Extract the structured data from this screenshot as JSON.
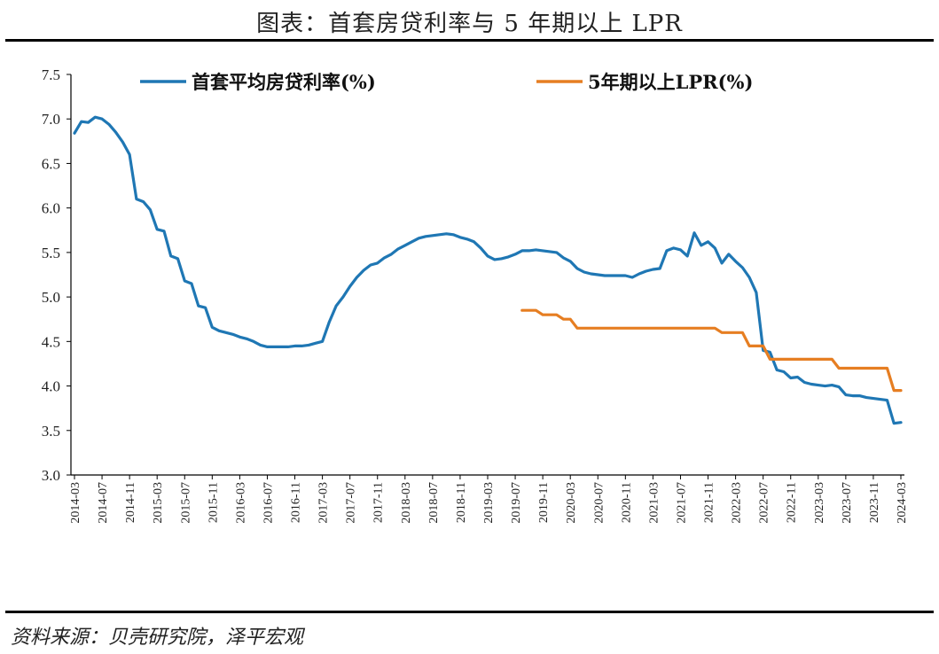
{
  "title": "图表：首套房贷利率与 5 年期以上 LPR",
  "source": "资料来源：贝壳研究院，泽平宏观",
  "chart_data": {
    "type": "line",
    "title": "首套房贷利率与 5 年期以上 LPR",
    "xlabel": "",
    "ylabel": "",
    "ylim": [
      3.0,
      7.5
    ],
    "yticks": [
      3.0,
      3.5,
      4.0,
      4.5,
      5.0,
      5.5,
      6.0,
      6.5,
      7.0,
      7.5
    ],
    "x_start": "2014-03",
    "x_end": "2024-03",
    "x_tick_labels": [
      "2014-03",
      "2014-07",
      "2014-11",
      "2015-03",
      "2015-07",
      "2015-11",
      "2016-03",
      "2016-07",
      "2016-11",
      "2017-03",
      "2017-07",
      "2017-11",
      "2018-03",
      "2018-07",
      "2018-11",
      "2019-03",
      "2019-07",
      "2019-11",
      "2020-03",
      "2020-07",
      "2020-11",
      "2021-03",
      "2021-07",
      "2021-11",
      "2022-03",
      "2022-07",
      "2022-11",
      "2023-03",
      "2023-07",
      "2023-11",
      "2024-03"
    ],
    "legend_position": "top",
    "series": [
      {
        "name": "首套平均房贷利率(%)",
        "color": "#1F77B4",
        "points": [
          [
            "2014-03",
            6.84
          ],
          [
            "2014-04",
            6.97
          ],
          [
            "2014-05",
            6.96
          ],
          [
            "2014-06",
            7.02
          ],
          [
            "2014-07",
            7.0
          ],
          [
            "2014-08",
            6.94
          ],
          [
            "2014-09",
            6.85
          ],
          [
            "2014-10",
            6.74
          ],
          [
            "2014-11",
            6.6
          ],
          [
            "2014-12",
            6.1
          ],
          [
            "2015-01",
            6.07
          ],
          [
            "2015-02",
            5.98
          ],
          [
            "2015-03",
            5.76
          ],
          [
            "2015-04",
            5.74
          ],
          [
            "2015-05",
            5.46
          ],
          [
            "2015-06",
            5.43
          ],
          [
            "2015-07",
            5.18
          ],
          [
            "2015-08",
            5.15
          ],
          [
            "2015-09",
            4.9
          ],
          [
            "2015-10",
            4.88
          ],
          [
            "2015-11",
            4.66
          ],
          [
            "2015-12",
            4.62
          ],
          [
            "2016-01",
            4.6
          ],
          [
            "2016-02",
            4.58
          ],
          [
            "2016-03",
            4.55
          ],
          [
            "2016-04",
            4.53
          ],
          [
            "2016-05",
            4.5
          ],
          [
            "2016-06",
            4.46
          ],
          [
            "2016-07",
            4.44
          ],
          [
            "2016-08",
            4.44
          ],
          [
            "2016-09",
            4.44
          ],
          [
            "2016-10",
            4.44
          ],
          [
            "2016-11",
            4.45
          ],
          [
            "2016-12",
            4.45
          ],
          [
            "2017-01",
            4.46
          ],
          [
            "2017-02",
            4.48
          ],
          [
            "2017-03",
            4.5
          ],
          [
            "2017-04",
            4.72
          ],
          [
            "2017-05",
            4.9
          ],
          [
            "2017-06",
            5.0
          ],
          [
            "2017-07",
            5.12
          ],
          [
            "2017-08",
            5.22
          ],
          [
            "2017-09",
            5.3
          ],
          [
            "2017-10",
            5.36
          ],
          [
            "2017-11",
            5.38
          ],
          [
            "2017-12",
            5.44
          ],
          [
            "2018-01",
            5.48
          ],
          [
            "2018-02",
            5.54
          ],
          [
            "2018-03",
            5.58
          ],
          [
            "2018-04",
            5.62
          ],
          [
            "2018-05",
            5.66
          ],
          [
            "2018-06",
            5.68
          ],
          [
            "2018-07",
            5.69
          ],
          [
            "2018-08",
            5.7
          ],
          [
            "2018-09",
            5.71
          ],
          [
            "2018-10",
            5.7
          ],
          [
            "2018-11",
            5.67
          ],
          [
            "2018-12",
            5.65
          ],
          [
            "2019-01",
            5.62
          ],
          [
            "2019-02",
            5.55
          ],
          [
            "2019-03",
            5.46
          ],
          [
            "2019-04",
            5.42
          ],
          [
            "2019-05",
            5.43
          ],
          [
            "2019-06",
            5.45
          ],
          [
            "2019-07",
            5.48
          ],
          [
            "2019-08",
            5.52
          ],
          [
            "2019-09",
            5.52
          ],
          [
            "2019-10",
            5.53
          ],
          [
            "2019-11",
            5.52
          ],
          [
            "2019-12",
            5.51
          ],
          [
            "2020-01",
            5.5
          ],
          [
            "2020-02",
            5.44
          ],
          [
            "2020-03",
            5.4
          ],
          [
            "2020-04",
            5.32
          ],
          [
            "2020-05",
            5.28
          ],
          [
            "2020-06",
            5.26
          ],
          [
            "2020-07",
            5.25
          ],
          [
            "2020-08",
            5.24
          ],
          [
            "2020-09",
            5.24
          ],
          [
            "2020-10",
            5.24
          ],
          [
            "2020-11",
            5.24
          ],
          [
            "2020-12",
            5.22
          ],
          [
            "2021-01",
            5.26
          ],
          [
            "2021-02",
            5.29
          ],
          [
            "2021-03",
            5.31
          ],
          [
            "2021-04",
            5.32
          ],
          [
            "2021-05",
            5.52
          ],
          [
            "2021-06",
            5.55
          ],
          [
            "2021-07",
            5.53
          ],
          [
            "2021-08",
            5.46
          ],
          [
            "2021-09",
            5.72
          ],
          [
            "2021-10",
            5.58
          ],
          [
            "2021-11",
            5.62
          ],
          [
            "2021-12",
            5.55
          ],
          [
            "2022-01",
            5.38
          ],
          [
            "2022-02",
            5.48
          ],
          [
            "2022-03",
            5.4
          ],
          [
            "2022-04",
            5.33
          ],
          [
            "2022-05",
            5.22
          ],
          [
            "2022-06",
            5.05
          ],
          [
            "2022-07",
            4.4
          ],
          [
            "2022-08",
            4.38
          ],
          [
            "2022-09",
            4.18
          ],
          [
            "2022-10",
            4.16
          ],
          [
            "2022-11",
            4.09
          ],
          [
            "2022-12",
            4.1
          ],
          [
            "2023-01",
            4.04
          ],
          [
            "2023-02",
            4.02
          ],
          [
            "2023-03",
            4.01
          ],
          [
            "2023-04",
            4.0
          ],
          [
            "2023-05",
            4.01
          ],
          [
            "2023-06",
            3.99
          ],
          [
            "2023-07",
            3.9
          ],
          [
            "2023-08",
            3.89
          ],
          [
            "2023-09",
            3.89
          ],
          [
            "2023-10",
            3.87
          ],
          [
            "2023-11",
            3.86
          ],
          [
            "2023-12",
            3.85
          ],
          [
            "2024-01",
            3.84
          ],
          [
            "2024-02",
            3.58
          ],
          [
            "2024-03",
            3.59
          ]
        ]
      },
      {
        "name": "5年期以上LPR(%)",
        "color": "#E67E22",
        "points": [
          [
            "2019-08",
            4.85
          ],
          [
            "2019-09",
            4.85
          ],
          [
            "2019-10",
            4.85
          ],
          [
            "2019-11",
            4.8
          ],
          [
            "2019-12",
            4.8
          ],
          [
            "2020-01",
            4.8
          ],
          [
            "2020-02",
            4.75
          ],
          [
            "2020-03",
            4.75
          ],
          [
            "2020-04",
            4.65
          ],
          [
            "2020-05",
            4.65
          ],
          [
            "2020-06",
            4.65
          ],
          [
            "2020-07",
            4.65
          ],
          [
            "2020-08",
            4.65
          ],
          [
            "2020-09",
            4.65
          ],
          [
            "2020-10",
            4.65
          ],
          [
            "2020-11",
            4.65
          ],
          [
            "2020-12",
            4.65
          ],
          [
            "2021-01",
            4.65
          ],
          [
            "2021-02",
            4.65
          ],
          [
            "2021-03",
            4.65
          ],
          [
            "2021-04",
            4.65
          ],
          [
            "2021-05",
            4.65
          ],
          [
            "2021-06",
            4.65
          ],
          [
            "2021-07",
            4.65
          ],
          [
            "2021-08",
            4.65
          ],
          [
            "2021-09",
            4.65
          ],
          [
            "2021-10",
            4.65
          ],
          [
            "2021-11",
            4.65
          ],
          [
            "2021-12",
            4.65
          ],
          [
            "2022-01",
            4.6
          ],
          [
            "2022-02",
            4.6
          ],
          [
            "2022-03",
            4.6
          ],
          [
            "2022-04",
            4.6
          ],
          [
            "2022-05",
            4.45
          ],
          [
            "2022-06",
            4.45
          ],
          [
            "2022-07",
            4.45
          ],
          [
            "2022-08",
            4.3
          ],
          [
            "2022-09",
            4.3
          ],
          [
            "2022-10",
            4.3
          ],
          [
            "2022-11",
            4.3
          ],
          [
            "2022-12",
            4.3
          ],
          [
            "2023-01",
            4.3
          ],
          [
            "2023-02",
            4.3
          ],
          [
            "2023-03",
            4.3
          ],
          [
            "2023-04",
            4.3
          ],
          [
            "2023-05",
            4.3
          ],
          [
            "2023-06",
            4.2
          ],
          [
            "2023-07",
            4.2
          ],
          [
            "2023-08",
            4.2
          ],
          [
            "2023-09",
            4.2
          ],
          [
            "2023-10",
            4.2
          ],
          [
            "2023-11",
            4.2
          ],
          [
            "2023-12",
            4.2
          ],
          [
            "2024-01",
            4.2
          ],
          [
            "2024-02",
            3.95
          ],
          [
            "2024-03",
            3.95
          ]
        ]
      }
    ]
  }
}
